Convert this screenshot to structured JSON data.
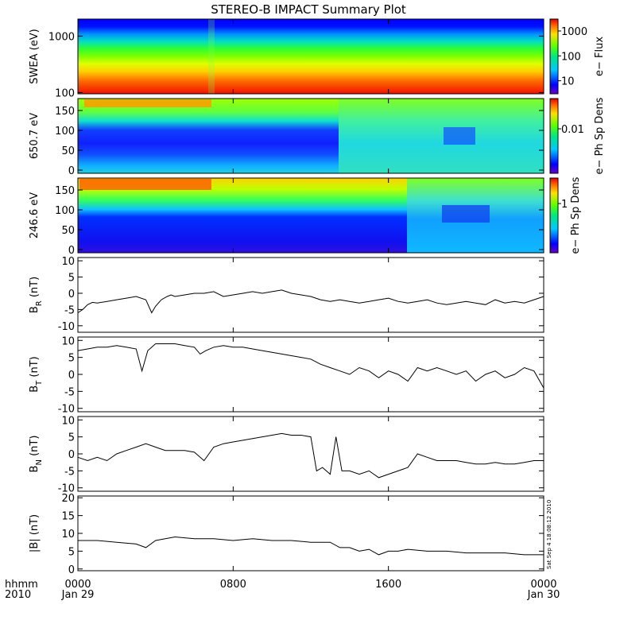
{
  "title": "STEREO-B IMPACT Summary Plot",
  "timestamp_text": "Sat Sep  4 18:08:12 2010",
  "time_axis": {
    "left_label_line1": "hhmm",
    "left_label_line2": "2010",
    "ticks": [
      {
        "hour": 0,
        "label": "0000",
        "date": "Jan 29"
      },
      {
        "hour": 8,
        "label": "0800",
        "date": ""
      },
      {
        "hour": 16,
        "label": "1600",
        "date": ""
      },
      {
        "hour": 24,
        "label": "0000",
        "date": "Jan 30"
      }
    ]
  },
  "spectrograms": [
    {
      "id": "swea",
      "ylabel": "SWEA (eV)",
      "yscale": "log",
      "ylim": [
        95,
        2000
      ],
      "yticks": [
        {
          "value": 100,
          "label": "100"
        },
        {
          "value": 1000,
          "label": "1000"
        }
      ],
      "colorbar": {
        "label": "e− Flux",
        "scale": "log",
        "range": [
          3,
          3000
        ],
        "ticks": [
          {
            "value": 10,
            "label": "10"
          },
          {
            "value": 100,
            "label": "100"
          },
          {
            "value": 1000,
            "label": "1000"
          }
        ]
      }
    },
    {
      "id": "pad650",
      "ylabel": "650.7 eV",
      "yscale": "linear",
      "ylim": [
        -8,
        180
      ],
      "yticks": [
        {
          "value": 0,
          "label": "0"
        },
        {
          "value": 50,
          "label": "50"
        },
        {
          "value": 100,
          "label": "100"
        },
        {
          "value": 150,
          "label": "150"
        }
      ],
      "colorbar": {
        "label": "e− Ph Sp Dens",
        "scale": "log",
        "range": [
          0.0013,
          0.04
        ],
        "ticks": [
          {
            "value": 0.01,
            "label": "0.01"
          }
        ]
      }
    },
    {
      "id": "pad246",
      "ylabel": "246.6 eV",
      "yscale": "linear",
      "ylim": [
        -8,
        180
      ],
      "yticks": [
        {
          "value": 0,
          "label": "0"
        },
        {
          "value": 50,
          "label": "50"
        },
        {
          "value": 100,
          "label": "100"
        },
        {
          "value": 150,
          "label": "150"
        }
      ],
      "colorbar": {
        "label": "e− Ph Sp Dens",
        "scale": "log",
        "range": [
          0.12,
          3
        ],
        "ticks": [
          {
            "value": 1,
            "label": "1"
          }
        ]
      }
    }
  ],
  "chart_data": [
    {
      "type": "line",
      "id": "br",
      "ylabel_main": "B",
      "ylabel_sub": "R",
      "ylabel_unit": " (nT)",
      "ylim": [
        -12,
        11
      ],
      "yticks": [
        -10,
        -5,
        0,
        5,
        10
      ],
      "x": [
        0,
        0.25,
        0.5,
        0.75,
        1,
        1.5,
        2,
        2.5,
        3,
        3.5,
        3.8,
        4,
        4.3,
        4.6,
        4.8,
        5,
        5.5,
        6,
        6.5,
        7,
        7.5,
        8,
        8.5,
        9,
        9.5,
        10,
        10.5,
        11,
        11.5,
        12,
        12.5,
        13,
        13.5,
        14,
        14.5,
        15,
        15.5,
        16,
        16.5,
        17,
        17.5,
        18,
        18.5,
        19,
        19.5,
        20,
        20.5,
        21,
        21.5,
        22,
        22.5,
        23,
        23.5,
        24
      ],
      "y": [
        -6,
        -5,
        -3.5,
        -2.8,
        -3,
        -2.5,
        -2,
        -1.5,
        -1,
        -2,
        -6,
        -4,
        -2,
        -1,
        -0.5,
        -1,
        -0.5,
        0,
        0,
        0.5,
        -1,
        -0.5,
        0,
        0.5,
        0,
        0.5,
        1,
        0,
        -0.5,
        -1,
        -2,
        -2.5,
        -2,
        -2.5,
        -3,
        -2.5,
        -2,
        -1.5,
        -2.5,
        -3,
        -2.5,
        -2,
        -3,
        -3.5,
        -3,
        -2.5,
        -3,
        -3.5,
        -2,
        -3,
        -2.5,
        -3,
        -2,
        -1
      ]
    },
    {
      "type": "line",
      "id": "bt",
      "ylabel_main": "B",
      "ylabel_sub": "T",
      "ylabel_unit": " (nT)",
      "ylim": [
        -11,
        11
      ],
      "yticks": [
        -10,
        -5,
        0,
        5,
        10
      ],
      "x": [
        0,
        0.5,
        1,
        1.5,
        2,
        2.5,
        3,
        3.3,
        3.6,
        4,
        4.5,
        5,
        5.5,
        6,
        6.3,
        6.6,
        7,
        7.5,
        8,
        8.5,
        9,
        9.5,
        10,
        10.5,
        11,
        11.5,
        12,
        12.5,
        13,
        13.5,
        14,
        14.5,
        15,
        15.5,
        16,
        16.5,
        17,
        17.5,
        18,
        18.5,
        19,
        19.5,
        20,
        20.5,
        21,
        21.5,
        22,
        22.5,
        23,
        23.5,
        24
      ],
      "y": [
        7,
        7.5,
        8,
        8,
        8.5,
        8,
        7.5,
        1,
        7,
        9,
        9,
        9,
        8.5,
        8,
        6,
        7,
        8,
        8.5,
        8,
        8,
        7.5,
        7,
        6.5,
        6,
        5.5,
        5,
        4.5,
        3,
        2,
        1,
        0,
        2,
        1,
        -1,
        1,
        0,
        -2,
        2,
        1,
        2,
        1,
        0,
        1,
        -2,
        0,
        1,
        -1,
        0,
        2,
        1,
        -4
      ]
    },
    {
      "type": "line",
      "id": "bn",
      "ylabel_main": "B",
      "ylabel_sub": "N",
      "ylabel_unit": " (nT)",
      "ylim": [
        -11,
        11
      ],
      "yticks": [
        -10,
        -5,
        0,
        5,
        10
      ],
      "x": [
        0,
        0.5,
        1,
        1.5,
        2,
        2.5,
        3,
        3.5,
        4,
        4.5,
        5,
        5.5,
        6,
        6.5,
        7,
        7.5,
        8,
        8.5,
        9,
        9.5,
        10,
        10.5,
        11,
        11.5,
        12,
        12.3,
        12.6,
        13,
        13.3,
        13.6,
        14,
        14.5,
        15,
        15.5,
        16,
        16.5,
        17,
        17.5,
        18,
        18.5,
        19,
        19.5,
        20,
        20.5,
        21,
        21.5,
        22,
        22.5,
        23,
        23.5,
        24
      ],
      "y": [
        -1,
        -2,
        -1,
        -2,
        0,
        1,
        2,
        3,
        2,
        1,
        1,
        1,
        0.5,
        -2,
        2,
        3,
        3.5,
        4,
        4.5,
        5,
        5.5,
        6,
        5.5,
        5.5,
        5,
        -5,
        -4,
        -6,
        5,
        -5,
        -5,
        -6,
        -5,
        -7,
        -6,
        -5,
        -4,
        0,
        -1,
        -2,
        -2,
        -2,
        -2.5,
        -3,
        -3,
        -2.5,
        -3,
        -3,
        -2.5,
        -2,
        -2
      ]
    },
    {
      "type": "line",
      "id": "bmag",
      "ylabel_main": "|B| (nT)",
      "ylabel_sub": "",
      "ylabel_unit": "",
      "ylim": [
        -0.5,
        20.5
      ],
      "yticks": [
        0,
        5,
        10,
        15,
        20
      ],
      "x": [
        0,
        1,
        2,
        3,
        3.5,
        4,
        5,
        6,
        7,
        8,
        9,
        10,
        11,
        12,
        13,
        13.5,
        14,
        14.5,
        15,
        15.5,
        16,
        16.5,
        17,
        18,
        19,
        20,
        21,
        22,
        23,
        24
      ],
      "y": [
        8,
        8,
        7.5,
        7,
        6,
        8,
        9,
        8.5,
        8.5,
        8,
        8.5,
        8,
        8,
        7.5,
        7.5,
        6,
        6,
        5,
        5.5,
        4,
        5,
        5,
        5.5,
        5,
        5,
        4.5,
        4.5,
        4.5,
        4,
        4
      ]
    }
  ]
}
